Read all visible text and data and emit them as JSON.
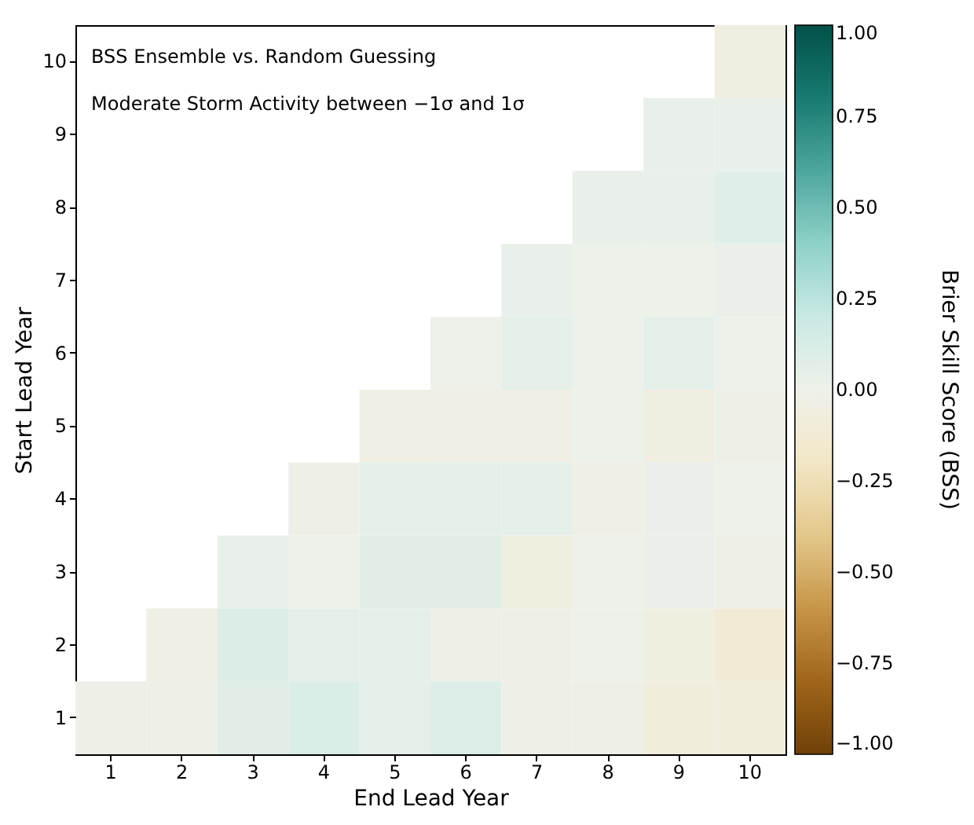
{
  "chart_data": {
    "type": "heatmap",
    "xlabel": "End Lead Year",
    "ylabel": "Start Lead Year",
    "clabel": "Brier Skill Score (BSS)",
    "annotations": [
      "BSS Ensemble vs. Random Guessing",
      "Moderate Storm Activity between −1σ and 1σ"
    ],
    "categories": [
      "1",
      "2",
      "3",
      "4",
      "5",
      "6",
      "7",
      "8",
      "9",
      "10"
    ],
    "y_categories": [
      "10",
      "9",
      "8",
      "7",
      "6",
      "5",
      "4",
      "3",
      "2",
      "1"
    ],
    "cells": [
      [
        null,
        null,
        null,
        null,
        null,
        null,
        null,
        null,
        null,
        -0.05
      ],
      [
        null,
        null,
        null,
        null,
        null,
        null,
        null,
        null,
        0.03,
        0.03
      ],
      [
        null,
        null,
        null,
        null,
        null,
        null,
        null,
        0.03,
        0.03,
        0.08
      ],
      [
        null,
        null,
        null,
        null,
        null,
        null,
        0.03,
        0.01,
        0.01,
        0.02
      ],
      [
        null,
        null,
        null,
        null,
        null,
        0.0,
        0.05,
        0.01,
        0.06,
        0.0
      ],
      [
        null,
        null,
        null,
        null,
        -0.04,
        -0.03,
        -0.03,
        0.01,
        -0.05,
        -0.01
      ],
      [
        null,
        null,
        null,
        -0.01,
        0.05,
        0.05,
        0.05,
        -0.03,
        0.02,
        0.01
      ],
      [
        null,
        null,
        0.03,
        0.0,
        0.07,
        0.07,
        -0.06,
        0.01,
        0.02,
        -0.01
      ],
      [
        null,
        -0.04,
        0.1,
        0.06,
        0.06,
        -0.01,
        -0.01,
        0.0,
        -0.06,
        -0.12
      ],
      [
        -0.01,
        -0.01,
        0.07,
        0.11,
        0.05,
        0.09,
        -0.01,
        -0.01,
        -0.08,
        -0.08
      ]
    ],
    "clim": [
      -1,
      1
    ],
    "cticks": [
      {
        "value": 1,
        "label": "1.00"
      },
      {
        "value": 0.75,
        "label": "0.75"
      },
      {
        "value": 0.5,
        "label": "0.50"
      },
      {
        "value": 0.25,
        "label": "0.25"
      },
      {
        "value": 0,
        "label": "0.00"
      },
      {
        "value": -0.25,
        "label": "−0.25"
      },
      {
        "value": -0.5,
        "label": "−0.50"
      },
      {
        "value": -0.75,
        "label": "−0.75"
      },
      {
        "value": -1,
        "label": "−1.00"
      }
    ]
  }
}
